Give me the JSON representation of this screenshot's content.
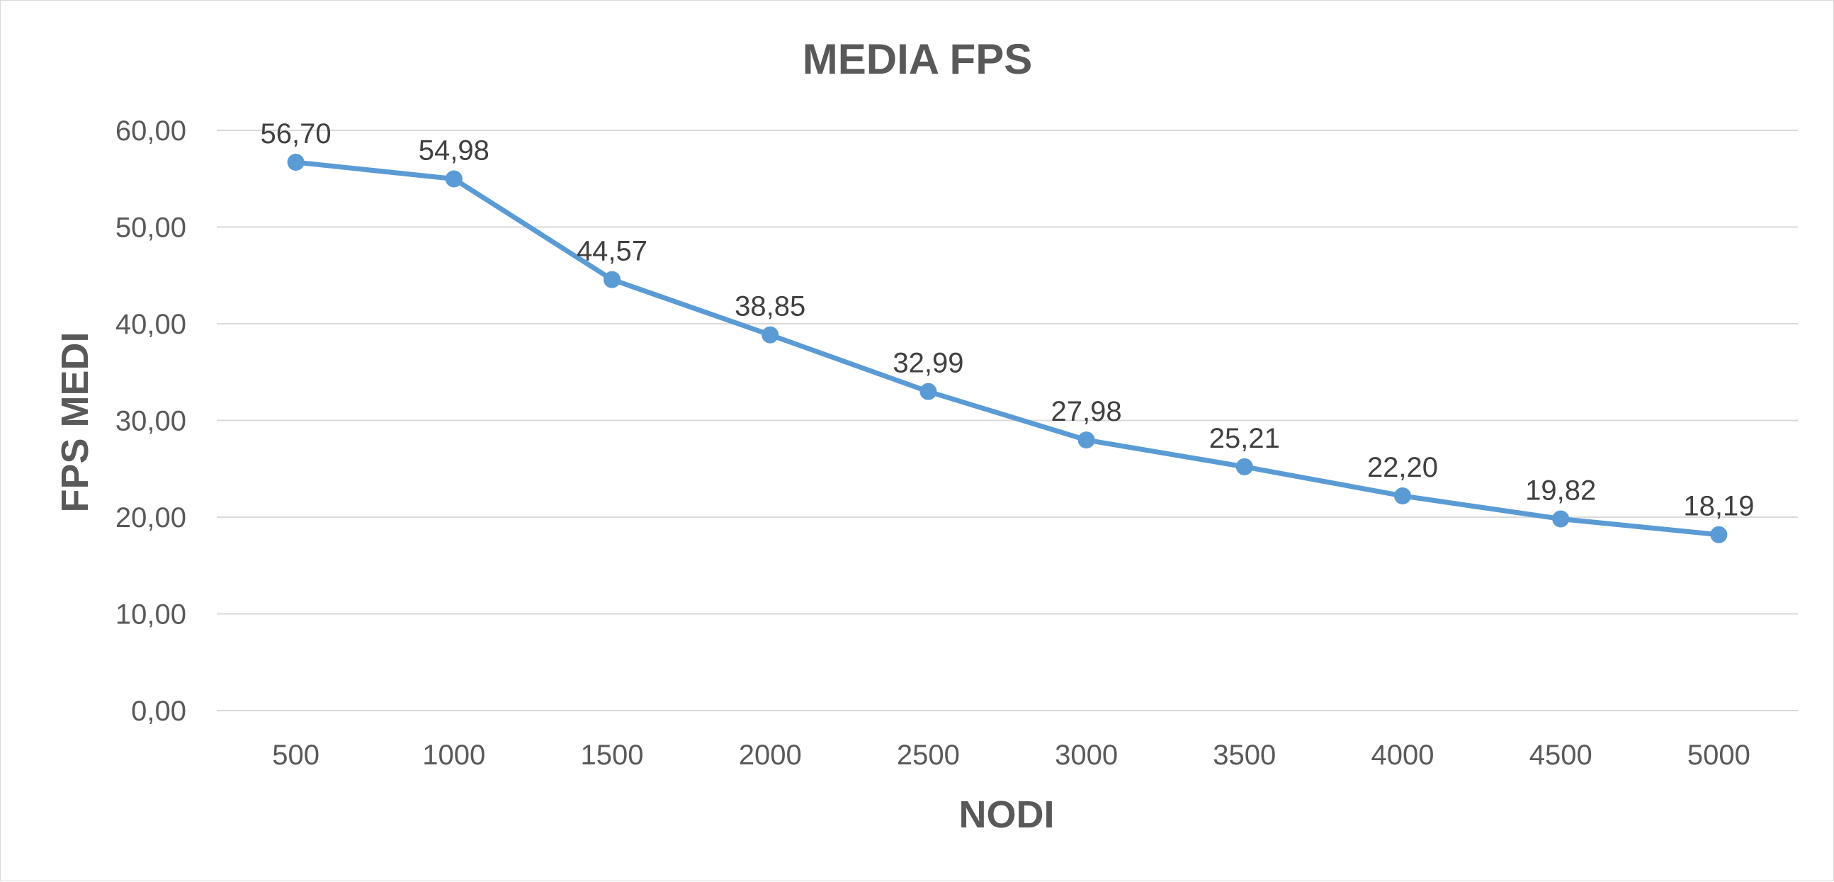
{
  "chart_data": {
    "type": "line",
    "title": "MEDIA FPS",
    "xlabel": "NODI",
    "ylabel": "FPS MEDI",
    "categories": [
      "500",
      "1000",
      "1500",
      "2000",
      "2500",
      "3000",
      "3500",
      "4000",
      "4500",
      "5000"
    ],
    "series": [
      {
        "values": [
          56.7,
          54.98,
          44.57,
          38.85,
          32.99,
          27.98,
          25.21,
          22.2,
          19.82,
          18.19
        ],
        "data_labels": [
          "56,70",
          "54,98",
          "44,57",
          "38,85",
          "32,99",
          "27,98",
          "25,21",
          "22,20",
          "19,82",
          "18,19"
        ],
        "color": "#5b9bd5"
      }
    ],
    "y_ticks": [
      0,
      10,
      20,
      30,
      40,
      50,
      60
    ],
    "y_tick_labels": [
      "0,00",
      "10,00",
      "20,00",
      "30,00",
      "40,00",
      "50,00",
      "60,00"
    ],
    "ylim": [
      0,
      60
    ],
    "grid": true,
    "legend": "none"
  }
}
